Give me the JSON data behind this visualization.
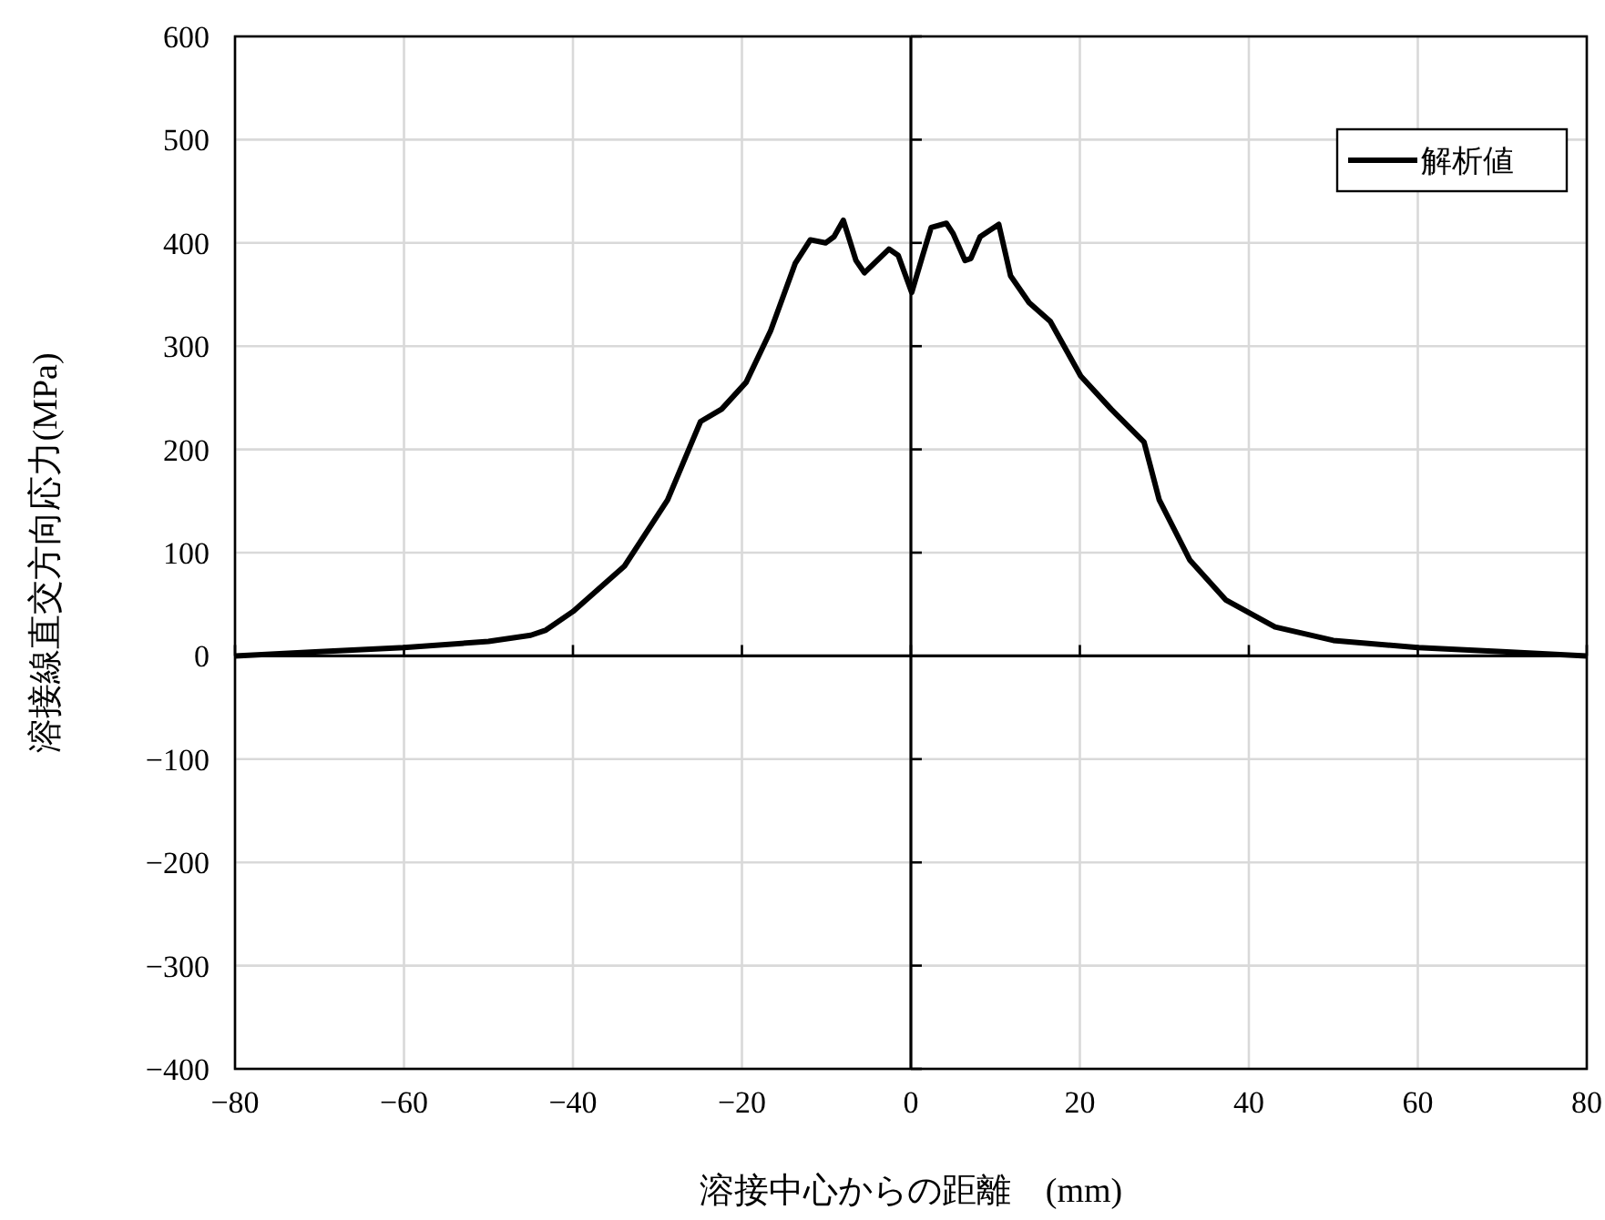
{
  "chart_data": {
    "type": "line",
    "xlabel": "溶接中心からの距離　(mm)",
    "ylabel": "溶接線直交方向応力(MPa)",
    "xlim": [
      -80,
      80
    ],
    "ylim": [
      -400,
      600
    ],
    "xticks": [
      -80,
      -60,
      -40,
      -20,
      0,
      20,
      40,
      60,
      80
    ],
    "yticks": [
      -400,
      -300,
      -200,
      -100,
      0,
      100,
      200,
      300,
      400,
      500,
      600
    ],
    "grid": true,
    "legend": "top right",
    "line_style": "solid",
    "marker": "none",
    "series": [
      {
        "name": "解析値",
        "color": "#000000",
        "x": [
          -80,
          -70,
          -60,
          -50,
          -45,
          -43.2,
          -40,
          -33.9,
          -28.8,
          -24.9,
          -22.4,
          -19.5,
          -16.6,
          -13.7,
          -11.9,
          -10.1,
          -9.1,
          -8.0,
          -6.5,
          -5.5,
          -2.6,
          -1.5,
          0.1,
          1.4,
          2.4,
          4.2,
          5.0,
          6.4,
          7.1,
          8.2,
          10.4,
          11.8,
          14.0,
          16.5,
          20.1,
          23.7,
          27.6,
          29.4,
          33.0,
          37.3,
          43.1,
          50,
          60,
          70,
          80
        ],
        "values": [
          0,
          4,
          8,
          14,
          20,
          25,
          43,
          87,
          151,
          227,
          239,
          265,
          315,
          380,
          403,
          400,
          406,
          422,
          383,
          371,
          394,
          388,
          352,
          388,
          415,
          419,
          409,
          383,
          385,
          406,
          418,
          368,
          342,
          324,
          271,
          239,
          207,
          151,
          93,
          54,
          28,
          15,
          8,
          4,
          0
        ]
      }
    ]
  }
}
